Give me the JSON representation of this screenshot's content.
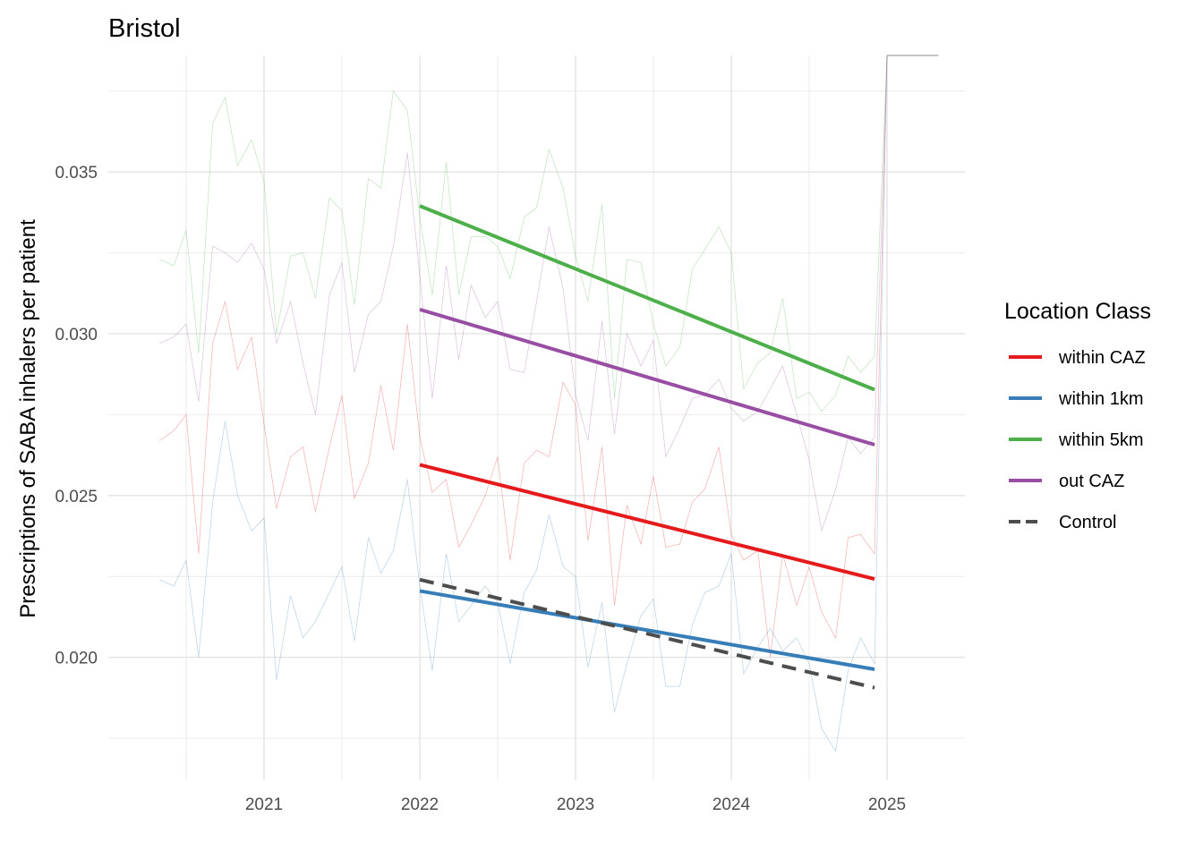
{
  "chart_data": {
    "type": "line",
    "title": "Bristol",
    "xlabel": "",
    "ylabel": "Prescriptions of SABA inhalers per patient",
    "xlim": [
      2020.0,
      2025.5
    ],
    "ylim": [
      0.0162,
      0.0386
    ],
    "x_ticks": [
      2021,
      2022,
      2023,
      2024,
      2025
    ],
    "x_tick_labels": [
      "2021",
      "2022",
      "2023",
      "2024",
      "2025"
    ],
    "y_ticks": [
      0.02,
      0.025,
      0.03,
      0.035
    ],
    "y_tick_labels": [
      "0.020",
      "0.025",
      "0.030",
      "0.035"
    ],
    "grid": true,
    "legend": {
      "title": "Location Class",
      "position": "right",
      "entries": [
        {
          "label": "within CAZ",
          "color": "#e41a1c",
          "dash": false
        },
        {
          "label": "within 1km",
          "color": "#377eb8",
          "dash": false
        },
        {
          "label": "within 5km",
          "color": "#4daf4a",
          "dash": false
        },
        {
          "label": "out CAZ",
          "color": "#984ea3",
          "dash": false
        },
        {
          "label": "Control",
          "color": "#4d4d4d",
          "dash": true
        }
      ]
    },
    "trend_lines": [
      {
        "name": "within CAZ",
        "color": "#e41a1c",
        "x": [
          2022.0,
          2024.92
        ],
        "y": [
          0.02595,
          0.02242
        ],
        "dash": false
      },
      {
        "name": "within 1km",
        "color": "#377eb8",
        "x": [
          2022.0,
          2024.92
        ],
        "y": [
          0.02205,
          0.01963
        ],
        "dash": false
      },
      {
        "name": "within 5km",
        "color": "#4daf4a",
        "x": [
          2022.0,
          2024.92
        ],
        "y": [
          0.03395,
          0.02827
        ],
        "dash": false
      },
      {
        "name": "out CAZ",
        "color": "#984ea3",
        "x": [
          2022.0,
          2024.92
        ],
        "y": [
          0.03075,
          0.02657
        ],
        "dash": false
      },
      {
        "name": "Control",
        "color": "#4d4d4d",
        "x": [
          2022.0,
          2024.92
        ],
        "y": [
          0.0224,
          0.01906
        ],
        "dash": true
      }
    ],
    "raw_series": [
      {
        "name": "within CAZ",
        "color": "#e41a1c",
        "x": [
          2020.33,
          2020.42,
          2020.5,
          2020.58,
          2020.67,
          2020.75,
          2020.83,
          2020.92,
          2021.0,
          2021.08,
          2021.17,
          2021.25,
          2021.33,
          2021.42,
          2021.5,
          2021.58,
          2021.67,
          2021.75,
          2021.83,
          2021.92,
          2022.0,
          2022.08,
          2022.17,
          2022.25,
          2022.33,
          2022.42,
          2022.5,
          2022.58,
          2022.67,
          2022.75,
          2022.83,
          2022.92,
          2023.0,
          2023.08,
          2023.17,
          2023.25,
          2023.33,
          2023.42,
          2023.5,
          2023.58,
          2023.67,
          2023.75,
          2023.83,
          2023.92,
          2024.0,
          2024.08,
          2024.17,
          2024.25,
          2024.33,
          2024.42,
          2024.5,
          2024.58,
          2024.67,
          2024.75,
          2024.83,
          2024.92,
          2025.0
        ],
        "y": [
          0.0267,
          0.027,
          0.0275,
          0.0232,
          0.0297,
          0.031,
          0.0289,
          0.0299,
          0.0272,
          0.0246,
          0.0262,
          0.0265,
          0.0245,
          0.0265,
          0.0281,
          0.0249,
          0.026,
          0.0284,
          0.0264,
          0.0303,
          0.0268,
          0.0251,
          0.0255,
          0.0234,
          0.0241,
          0.025,
          0.0262,
          0.023,
          0.026,
          0.0264,
          0.0262,
          0.0285,
          0.0278,
          0.0236,
          0.0265,
          0.0216,
          0.0247,
          0.0235,
          0.0256,
          0.0234,
          0.0235,
          0.0248,
          0.0252,
          0.0265,
          0.0238,
          0.023,
          0.0233,
          0.02,
          0.0232,
          0.0216,
          0.0228,
          0.0214,
          0.0206,
          0.0237,
          0.0238,
          0.0232,
          0.0386
        ]
      },
      {
        "name": "within 1km",
        "color": "#377eb8",
        "x": [
          2020.33,
          2020.42,
          2020.5,
          2020.58,
          2020.67,
          2020.75,
          2020.83,
          2020.92,
          2021.0,
          2021.08,
          2021.17,
          2021.25,
          2021.33,
          2021.42,
          2021.5,
          2021.58,
          2021.67,
          2021.75,
          2021.83,
          2021.92,
          2022.0,
          2022.08,
          2022.17,
          2022.25,
          2022.33,
          2022.42,
          2022.5,
          2022.58,
          2022.67,
          2022.75,
          2022.83,
          2022.92,
          2023.0,
          2023.08,
          2023.17,
          2023.25,
          2023.33,
          2023.42,
          2023.5,
          2023.58,
          2023.67,
          2023.75,
          2023.83,
          2023.92,
          2024.0,
          2024.08,
          2024.17,
          2024.25,
          2024.33,
          2024.42,
          2024.5,
          2024.58,
          2024.67,
          2024.75,
          2024.83,
          2024.92,
          2025.0
        ],
        "y": [
          0.0224,
          0.0222,
          0.023,
          0.02,
          0.0248,
          0.0273,
          0.025,
          0.0239,
          0.0243,
          0.0193,
          0.0219,
          0.0206,
          0.0211,
          0.022,
          0.0228,
          0.0205,
          0.0237,
          0.0226,
          0.0233,
          0.0255,
          0.0222,
          0.0196,
          0.0232,
          0.0211,
          0.0216,
          0.0222,
          0.0217,
          0.0198,
          0.022,
          0.0227,
          0.0244,
          0.0228,
          0.0225,
          0.0197,
          0.0217,
          0.0183,
          0.0198,
          0.0213,
          0.0218,
          0.0191,
          0.0191,
          0.021,
          0.022,
          0.0222,
          0.0232,
          0.0195,
          0.0203,
          0.0209,
          0.0202,
          0.0206,
          0.0198,
          0.0178,
          0.0171,
          0.0196,
          0.0206,
          0.0198,
          0.0386
        ]
      },
      {
        "name": "within 5km",
        "color": "#4daf4a",
        "x": [
          2020.33,
          2020.42,
          2020.5,
          2020.58,
          2020.67,
          2020.75,
          2020.83,
          2020.92,
          2021.0,
          2021.08,
          2021.17,
          2021.25,
          2021.33,
          2021.42,
          2021.5,
          2021.58,
          2021.67,
          2021.75,
          2021.83,
          2021.92,
          2022.0,
          2022.08,
          2022.17,
          2022.25,
          2022.33,
          2022.42,
          2022.5,
          2022.58,
          2022.67,
          2022.75,
          2022.83,
          2022.92,
          2023.0,
          2023.08,
          2023.17,
          2023.25,
          2023.33,
          2023.42,
          2023.5,
          2023.58,
          2023.67,
          2023.75,
          2023.83,
          2023.92,
          2024.0,
          2024.08,
          2024.17,
          2024.25,
          2024.33,
          2024.42,
          2024.5,
          2024.58,
          2024.67,
          2024.75,
          2024.83,
          2024.92,
          2025.0
        ],
        "y": [
          0.0323,
          0.0321,
          0.0332,
          0.0294,
          0.0365,
          0.0373,
          0.0352,
          0.036,
          0.0347,
          0.03,
          0.0324,
          0.0325,
          0.0311,
          0.0342,
          0.0338,
          0.0309,
          0.0348,
          0.0345,
          0.0375,
          0.0369,
          0.0336,
          0.0312,
          0.0353,
          0.0312,
          0.033,
          0.033,
          0.0327,
          0.0317,
          0.0336,
          0.0339,
          0.0357,
          0.0345,
          0.0324,
          0.031,
          0.034,
          0.028,
          0.0323,
          0.0322,
          0.0303,
          0.029,
          0.0296,
          0.032,
          0.0326,
          0.0333,
          0.0325,
          0.0283,
          0.0291,
          0.0294,
          0.0311,
          0.028,
          0.0282,
          0.0276,
          0.0281,
          0.0293,
          0.0288,
          0.0293,
          0.0386
        ]
      },
      {
        "name": "out CAZ",
        "color": "#984ea3",
        "x": [
          2020.33,
          2020.42,
          2020.5,
          2020.58,
          2020.67,
          2020.75,
          2020.83,
          2020.92,
          2021.0,
          2021.08,
          2021.17,
          2021.25,
          2021.33,
          2021.42,
          2021.5,
          2021.58,
          2021.67,
          2021.75,
          2021.83,
          2021.92,
          2022.0,
          2022.08,
          2022.17,
          2022.25,
          2022.33,
          2022.42,
          2022.5,
          2022.58,
          2022.67,
          2022.75,
          2022.83,
          2022.92,
          2023.0,
          2023.08,
          2023.17,
          2023.25,
          2023.33,
          2023.42,
          2023.5,
          2023.58,
          2023.67,
          2023.75,
          2023.83,
          2023.92,
          2024.0,
          2024.08,
          2024.17,
          2024.25,
          2024.33,
          2024.42,
          2024.5,
          2024.58,
          2024.67,
          2024.75,
          2024.83,
          2024.92,
          2025.0
        ],
        "y": [
          0.0297,
          0.0299,
          0.0303,
          0.0279,
          0.0327,
          0.0325,
          0.0322,
          0.0328,
          0.032,
          0.0297,
          0.031,
          0.0291,
          0.0275,
          0.0312,
          0.0322,
          0.0288,
          0.0306,
          0.031,
          0.0327,
          0.0356,
          0.0318,
          0.028,
          0.0321,
          0.0292,
          0.0315,
          0.0305,
          0.031,
          0.0289,
          0.0288,
          0.031,
          0.0333,
          0.0314,
          0.0281,
          0.0267,
          0.0304,
          0.0269,
          0.03,
          0.029,
          0.0298,
          0.0262,
          0.0271,
          0.028,
          0.0281,
          0.0286,
          0.0277,
          0.0273,
          0.0276,
          0.0283,
          0.029,
          0.0275,
          0.0261,
          0.0239,
          0.0252,
          0.0268,
          0.0263,
          0.0268,
          0.0386
        ]
      }
    ],
    "flat_segment": {
      "color": "#888888",
      "x": [
        2025.0,
        2025.33
      ],
      "y": [
        0.0386,
        0.0386
      ]
    }
  }
}
